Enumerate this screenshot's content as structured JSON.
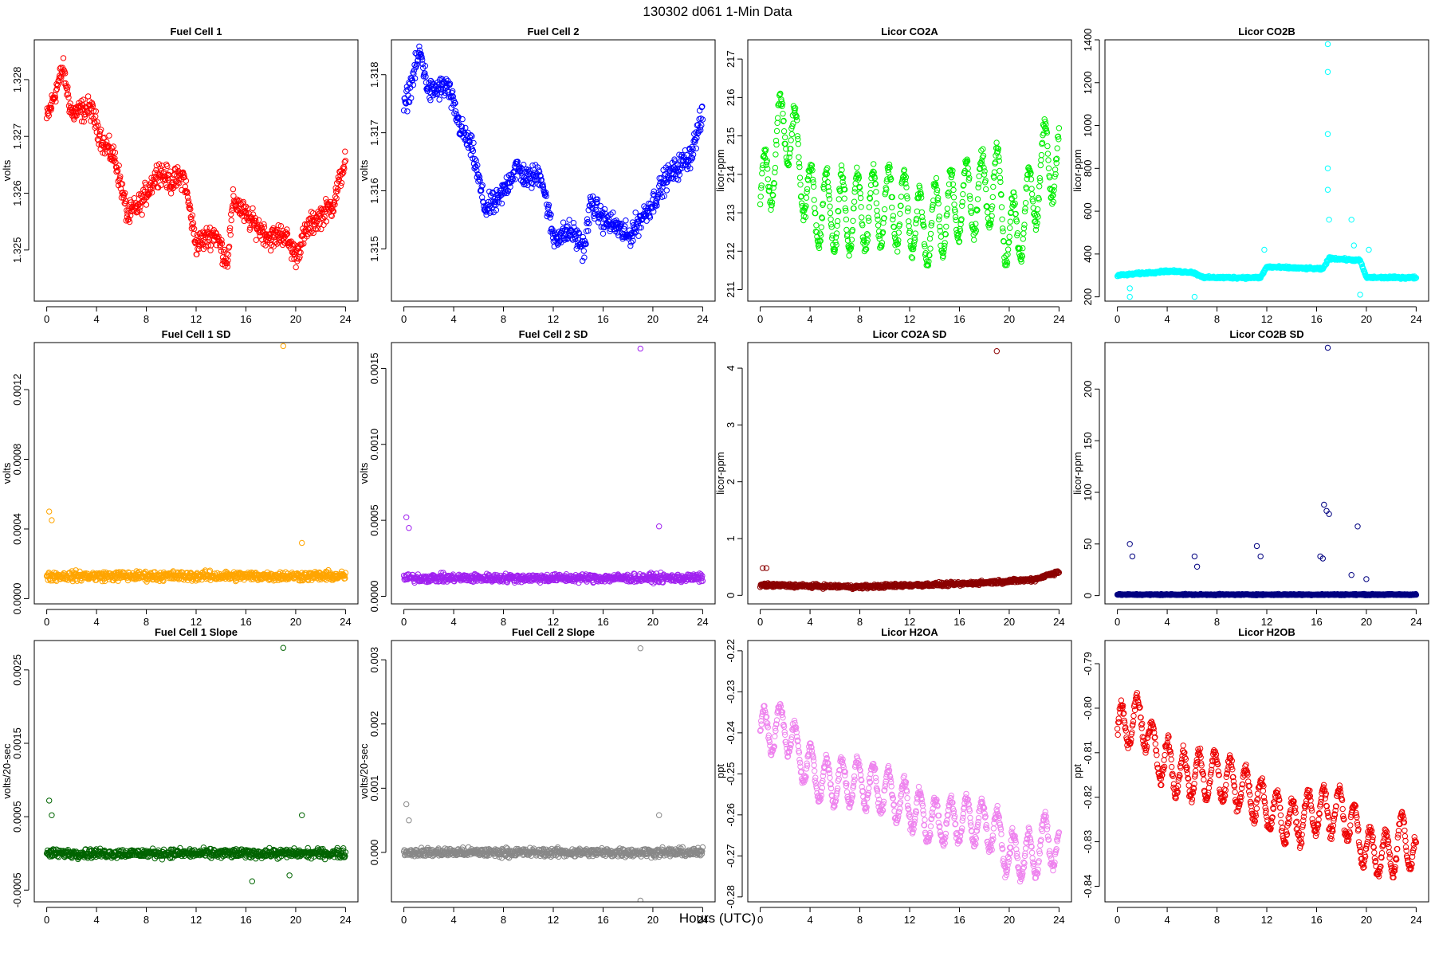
{
  "figure": {
    "title": "130302   d061   1-Min Data",
    "xlabel": "Hours (UTC)"
  },
  "chart_data": [
    {
      "type": "scatter",
      "title": "Fuel Cell 1",
      "ylabel": "volts",
      "color": "#ff0000",
      "xlim": [
        -1,
        25
      ],
      "ylim": [
        1.3241,
        1.3287
      ],
      "xticks": [
        0,
        4,
        8,
        12,
        16,
        20,
        24
      ],
      "yticks": [
        1.325,
        1.326,
        1.327,
        1.328
      ],
      "ytick_labels": [
        "1.325",
        "1.326",
        "1.327",
        "1.328"
      ],
      "profile": [
        [
          0,
          1.3273
        ],
        [
          1.3,
          1.3282
        ],
        [
          2,
          1.3274
        ],
        [
          3.5,
          1.3275
        ],
        [
          4.5,
          1.3269
        ],
        [
          5.5,
          1.3266
        ],
        [
          6.5,
          1.3256
        ],
        [
          7.5,
          1.3258
        ],
        [
          9,
          1.3264
        ],
        [
          10,
          1.3262
        ],
        [
          11,
          1.3263
        ],
        [
          12,
          1.3251
        ],
        [
          13.5,
          1.3253
        ],
        [
          14.5,
          1.3248
        ],
        [
          15,
          1.3259
        ],
        [
          16,
          1.3256
        ],
        [
          17,
          1.3254
        ],
        [
          18,
          1.3252
        ],
        [
          19,
          1.3253
        ],
        [
          20,
          1.3249
        ],
        [
          21,
          1.3254
        ],
        [
          22,
          1.3256
        ],
        [
          23,
          1.3258
        ],
        [
          24,
          1.3266
        ]
      ],
      "noise": 0.0003
    },
    {
      "type": "scatter",
      "title": "Fuel Cell 2",
      "ylabel": "volts",
      "color": "#0000ff",
      "xlim": [
        -1,
        25
      ],
      "ylim": [
        1.3141,
        1.3186
      ],
      "xticks": [
        0,
        4,
        8,
        12,
        16,
        20,
        24
      ],
      "yticks": [
        1.315,
        1.316,
        1.317,
        1.318
      ],
      "ytick_labels": [
        "1.315",
        "1.316",
        "1.317",
        "1.318"
      ],
      "profile": [
        [
          0,
          1.3174
        ],
        [
          1.3,
          1.3184
        ],
        [
          2,
          1.3177
        ],
        [
          3.5,
          1.3178
        ],
        [
          4.5,
          1.3171
        ],
        [
          5.5,
          1.3167
        ],
        [
          6.5,
          1.3157
        ],
        [
          7.5,
          1.3158
        ],
        [
          9,
          1.3164
        ],
        [
          10,
          1.3162
        ],
        [
          11,
          1.3163
        ],
        [
          12,
          1.3152
        ],
        [
          13.5,
          1.3153
        ],
        [
          14.5,
          1.315
        ],
        [
          15,
          1.3158
        ],
        [
          16,
          1.3155
        ],
        [
          17,
          1.3154
        ],
        [
          18,
          1.3152
        ],
        [
          19,
          1.3155
        ],
        [
          20,
          1.3158
        ],
        [
          21,
          1.3162
        ],
        [
          22,
          1.3164
        ],
        [
          23,
          1.3166
        ],
        [
          24,
          1.3173
        ]
      ],
      "noise": 0.0003
    },
    {
      "type": "scatter",
      "title": "Licor CO2A",
      "ylabel": "licor-ppm",
      "color": "#00ee00",
      "xlim": [
        -1,
        25
      ],
      "ylim": [
        210.7,
        217.5
      ],
      "xticks": [
        0,
        4,
        8,
        12,
        16,
        20,
        24
      ],
      "yticks": [
        211,
        212,
        213,
        214,
        215,
        216,
        217
      ],
      "ytick_labels": [
        "211",
        "212",
        "213",
        "214",
        "215",
        "216",
        "217"
      ],
      "profile": [
        [
          0,
          213.2
        ],
        [
          2,
          215.5
        ],
        [
          3,
          214.5
        ],
        [
          4,
          213.2
        ],
        [
          6,
          213
        ],
        [
          8,
          213
        ],
        [
          10,
          213.2
        ],
        [
          12,
          213
        ],
        [
          13,
          212.5
        ],
        [
          16,
          213.3
        ],
        [
          18,
          213.5
        ],
        [
          19,
          213.8
        ],
        [
          20,
          212.3
        ],
        [
          21,
          212.8
        ],
        [
          22,
          213.5
        ],
        [
          23,
          214.5
        ],
        [
          24,
          214.2
        ]
      ],
      "noise": 0.3,
      "osc": 2.0
    },
    {
      "type": "scatter",
      "title": "Licor CO2B",
      "ylabel": "licor-ppm",
      "color": "#00ffff",
      "xlim": [
        -1,
        25
      ],
      "ylim": [
        180,
        1400
      ],
      "xticks": [
        0,
        4,
        8,
        12,
        16,
        20,
        24
      ],
      "yticks": [
        200,
        400,
        600,
        800,
        1000,
        1200,
        1400
      ],
      "ytick_labels": [
        "200",
        "400",
        "600",
        "800",
        "1000",
        "1200",
        "1400"
      ],
      "profile": [
        [
          0,
          300
        ],
        [
          2,
          310
        ],
        [
          4,
          320
        ],
        [
          6,
          315
        ],
        [
          7,
          290
        ],
        [
          11.5,
          290
        ],
        [
          12,
          340
        ],
        [
          16.5,
          330
        ],
        [
          17,
          380
        ],
        [
          19.5,
          370
        ],
        [
          20,
          290
        ],
        [
          24,
          290
        ]
      ],
      "noise": 8,
      "outliers": [
        [
          1,
          240
        ],
        [
          1,
          200
        ],
        [
          6.2,
          200
        ],
        [
          11.8,
          420
        ],
        [
          16.9,
          1380
        ],
        [
          16.9,
          1250
        ],
        [
          16.9,
          960
        ],
        [
          16.9,
          800
        ],
        [
          16.9,
          700
        ],
        [
          17,
          560
        ],
        [
          18.8,
          560
        ],
        [
          19,
          440
        ],
        [
          19.5,
          210
        ],
        [
          20.2,
          420
        ]
      ]
    },
    {
      "type": "scatter",
      "title": "Fuel Cell 1 SD",
      "ylabel": "volts",
      "color": "#ffa500",
      "xlim": [
        -1,
        25
      ],
      "ylim": [
        -3e-05,
        0.00147
      ],
      "xticks": [
        0,
        4,
        8,
        12,
        16,
        20,
        24
      ],
      "yticks": [
        0,
        0.0004,
        0.0008,
        0.0012
      ],
      "ytick_labels": [
        "0.0000",
        "0.0004",
        "0.0008",
        "0.0012"
      ],
      "profile": [
        [
          0,
          0.00013
        ],
        [
          24,
          0.00013
        ]
      ],
      "noise": 4e-05,
      "outliers": [
        [
          0.2,
          0.0005
        ],
        [
          0.4,
          0.00045
        ],
        [
          19,
          0.00145
        ],
        [
          20.5,
          0.00032
        ]
      ]
    },
    {
      "type": "scatter",
      "title": "Fuel Cell 2 SD",
      "ylabel": "volts",
      "color": "#a020f0",
      "xlim": [
        -1,
        25
      ],
      "ylim": [
        -5e-05,
        0.00167
      ],
      "xticks": [
        0,
        4,
        8,
        12,
        16,
        20,
        24
      ],
      "yticks": [
        0,
        0.0005,
        0.001,
        0.0015
      ],
      "ytick_labels": [
        "0.0000",
        "0.0005",
        "0.0010",
        "0.0015"
      ],
      "profile": [
        [
          0,
          0.00012
        ],
        [
          24,
          0.00012
        ]
      ],
      "noise": 4e-05,
      "outliers": [
        [
          0.2,
          0.00052
        ],
        [
          0.4,
          0.00045
        ],
        [
          19,
          0.00163
        ],
        [
          20.5,
          0.00046
        ]
      ]
    },
    {
      "type": "scatter",
      "title": "Licor CO2A SD",
      "ylabel": "licor-ppm",
      "color": "#8b0000",
      "xlim": [
        -1,
        25
      ],
      "ylim": [
        -0.15,
        4.45
      ],
      "xticks": [
        0,
        4,
        8,
        12,
        16,
        20,
        24
      ],
      "yticks": [
        0,
        1,
        2,
        3,
        4
      ],
      "ytick_labels": [
        "0",
        "1",
        "2",
        "3",
        "4"
      ],
      "profile": [
        [
          0,
          0.18
        ],
        [
          8,
          0.15
        ],
        [
          12,
          0.18
        ],
        [
          16,
          0.2
        ],
        [
          20,
          0.25
        ],
        [
          22,
          0.28
        ],
        [
          24,
          0.42
        ]
      ],
      "noise": 0.05,
      "outliers": [
        [
          19,
          4.3
        ],
        [
          0.2,
          0.48
        ],
        [
          0.5,
          0.48
        ]
      ]
    },
    {
      "type": "scatter",
      "title": "Licor CO2B SD",
      "ylabel": "licor-ppm",
      "color": "#000080",
      "xlim": [
        -1,
        25
      ],
      "ylim": [
        -8,
        245
      ],
      "xticks": [
        0,
        4,
        8,
        12,
        16,
        20,
        24
      ],
      "yticks": [
        0,
        50,
        100,
        150,
        200
      ],
      "ytick_labels": [
        "0",
        "50",
        "100",
        "150",
        "200"
      ],
      "profile": [
        [
          0,
          1
        ],
        [
          24,
          1
        ]
      ],
      "noise": 0.8,
      "outliers": [
        [
          16.9,
          240
        ],
        [
          16.6,
          88
        ],
        [
          16.8,
          82
        ],
        [
          17,
          79
        ],
        [
          16.3,
          38
        ],
        [
          16.5,
          36
        ],
        [
          1,
          50
        ],
        [
          1.2,
          38
        ],
        [
          6.2,
          38
        ],
        [
          6.4,
          28
        ],
        [
          11.2,
          48
        ],
        [
          11.5,
          38
        ],
        [
          19.3,
          67
        ],
        [
          18.8,
          20
        ],
        [
          20,
          16
        ]
      ]
    },
    {
      "type": "scatter",
      "title": "Fuel Cell 1 Slope",
      "ylabel": "volts/20-sec",
      "color": "#006400",
      "xlim": [
        -1,
        25
      ],
      "ylim": [
        -0.00066,
        0.0029
      ],
      "xticks": [
        0,
        4,
        8,
        12,
        16,
        20,
        24
      ],
      "yticks": [
        -0.0005,
        0.0005,
        0.0015,
        0.0025
      ],
      "ytick_labels": [
        "-0.0005",
        "0.0005",
        "0.0015",
        "0.0025"
      ],
      "profile": [
        [
          0,
          0
        ],
        [
          24,
          0
        ]
      ],
      "noise": 9e-05,
      "outliers": [
        [
          19,
          0.0028
        ],
        [
          0.2,
          0.00072
        ],
        [
          0.4,
          0.00052
        ],
        [
          20.5,
          0.00052
        ],
        [
          16.5,
          -0.00038
        ],
        [
          19.5,
          -0.0003
        ]
      ]
    },
    {
      "type": "scatter",
      "title": "Fuel Cell 2 Slope",
      "ylabel": "volts/20-sec",
      "color": "#888888",
      "xlim": [
        -1,
        25
      ],
      "ylim": [
        -0.00077,
        0.0033
      ],
      "xticks": [
        0,
        4,
        8,
        12,
        16,
        20,
        24
      ],
      "yticks": [
        0,
        0.001,
        0.002,
        0.003
      ],
      "ytick_labels": [
        "0.000",
        "0.001",
        "0.002",
        "0.003"
      ],
      "profile": [
        [
          0,
          0
        ],
        [
          24,
          0
        ]
      ],
      "noise": 0.0001,
      "outliers": [
        [
          19,
          0.00318
        ],
        [
          0.2,
          0.00075
        ],
        [
          0.4,
          0.0005
        ],
        [
          20.5,
          0.00058
        ],
        [
          19,
          -0.00075
        ]
      ]
    },
    {
      "type": "scatter",
      "title": "Licor H2OA",
      "ylabel": "ppt",
      "color": "#ee82ee",
      "xlim": [
        -1,
        25
      ],
      "ylim": [
        -0.2812,
        -0.2175
      ],
      "xticks": [
        0,
        4,
        8,
        12,
        16,
        20,
        24
      ],
      "yticks": [
        -0.28,
        -0.27,
        -0.26,
        -0.25,
        -0.24,
        -0.23,
        -0.22
      ],
      "ytick_labels": [
        "-0.28",
        "-0.27",
        "-0.26",
        "-0.25",
        "-0.24",
        "-0.23",
        "-0.22"
      ],
      "profile": [
        [
          0,
          -0.24
        ],
        [
          2,
          -0.238
        ],
        [
          3,
          -0.245
        ],
        [
          5,
          -0.252
        ],
        [
          8,
          -0.252
        ],
        [
          10,
          -0.254
        ],
        [
          12,
          -0.258
        ],
        [
          14,
          -0.262
        ],
        [
          16,
          -0.261
        ],
        [
          18,
          -0.262
        ],
        [
          19,
          -0.264
        ],
        [
          20,
          -0.27
        ],
        [
          22,
          -0.27
        ],
        [
          23,
          -0.265
        ],
        [
          24,
          -0.27
        ]
      ],
      "noise": 0.002,
      "osc": 0.011
    },
    {
      "type": "scatter",
      "title": "Licor H2OB",
      "ylabel": "ppt",
      "color": "#ee0000",
      "xlim": [
        -1,
        25
      ],
      "ylim": [
        -0.8435,
        -0.7848
      ],
      "xticks": [
        0,
        4,
        8,
        12,
        16,
        20,
        24
      ],
      "yticks": [
        -0.84,
        -0.83,
        -0.82,
        -0.81,
        -0.8,
        -0.79
      ],
      "ytick_labels": [
        "-0.84",
        "-0.83",
        "-0.82",
        "-0.81",
        "-0.80",
        "-0.79"
      ],
      "profile": [
        [
          0,
          -0.805
        ],
        [
          2,
          -0.802
        ],
        [
          3,
          -0.81
        ],
        [
          5,
          -0.815
        ],
        [
          8,
          -0.815
        ],
        [
          10,
          -0.818
        ],
        [
          12,
          -0.822
        ],
        [
          14,
          -0.826
        ],
        [
          16,
          -0.823
        ],
        [
          18,
          -0.823
        ],
        [
          19,
          -0.826
        ],
        [
          20,
          -0.832
        ],
        [
          22,
          -0.833
        ],
        [
          23,
          -0.828
        ],
        [
          24,
          -0.834
        ]
      ],
      "noise": 0.002,
      "osc": 0.01
    }
  ]
}
